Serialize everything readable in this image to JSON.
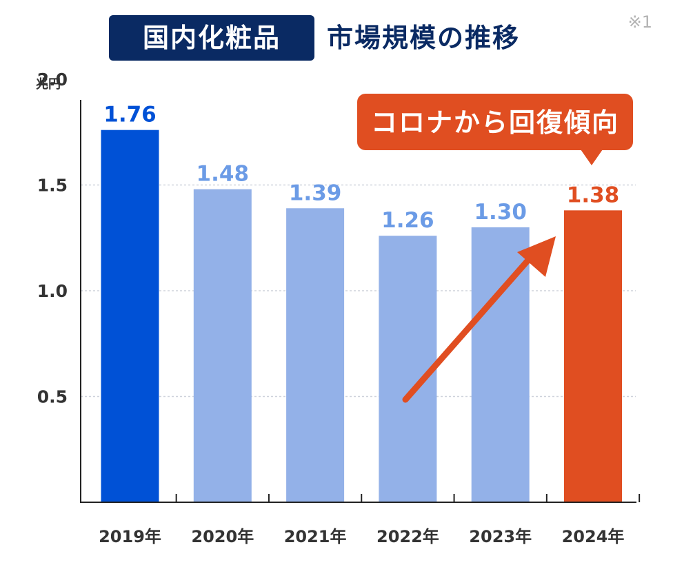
{
  "header": {
    "title_highlight": "国内化粧品",
    "title_rest": "市場規模の推移",
    "note": "※1"
  },
  "chart_data": {
    "type": "bar",
    "title": "国内化粧品 市場規模の推移",
    "ylabel": "兆円",
    "xlabel": "",
    "categories": [
      "2019年",
      "2020年",
      "2021年",
      "2022年",
      "2023年",
      "2024年"
    ],
    "values": [
      1.76,
      1.48,
      1.39,
      1.26,
      1.3,
      1.38
    ],
    "data_labels": [
      "1.76",
      "1.48",
      "1.39",
      "1.26",
      "1.30",
      "1.38"
    ],
    "ylim": [
      0,
      2.0
    ],
    "yticks": [
      0.5,
      1.0,
      1.5,
      2.0
    ],
    "ytick_labels": [
      "0.5",
      "1.0",
      "1.5",
      "2.0"
    ],
    "grid": true,
    "bar_colors": [
      "#0051d6",
      "#93b1e8",
      "#93b1e8",
      "#93b1e8",
      "#93b1e8",
      "#e04e21"
    ],
    "label_colors": [
      "#0051d6",
      "#6b9be6",
      "#6b9be6",
      "#6b9be6",
      "#6b9be6",
      "#e04e21"
    ],
    "annotation": {
      "text": "コロナから回復傾向",
      "color": "#e04e21",
      "points_to": "2024年",
      "arrow": "upward trend from 2022年 toward 2024年"
    }
  }
}
